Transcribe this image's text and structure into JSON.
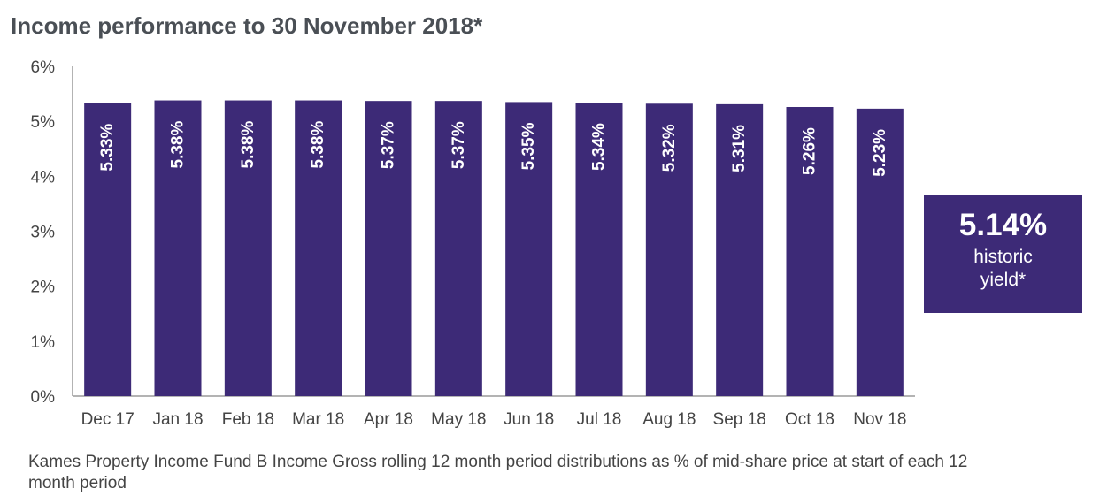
{
  "colors": {
    "bar": "#3d2a77",
    "axis": "#9a9a9a",
    "title": "#4a4f55",
    "text": "#444444",
    "bar_label": "#ffffff"
  },
  "callout": {
    "value": "5.14%",
    "label": "historic yield*"
  },
  "footnote": "Kames Property Income Fund B Income Gross rolling 12 month period distributions as % of mid-share price at start of each 12 month period",
  "chart_data": {
    "type": "bar",
    "title": "Income performance to 30 November 2018*",
    "xlabel": "",
    "ylabel": "",
    "categories": [
      "Dec 17",
      "Jan 18",
      "Feb 18",
      "Mar 18",
      "Apr 18",
      "May 18",
      "Jun 18",
      "Jul 18",
      "Aug 18",
      "Sep 18",
      "Oct 18",
      "Nov 18"
    ],
    "values": [
      5.33,
      5.38,
      5.38,
      5.38,
      5.37,
      5.37,
      5.35,
      5.34,
      5.32,
      5.31,
      5.26,
      5.23
    ],
    "data_labels": [
      "5.33%",
      "5.38%",
      "5.38%",
      "5.38%",
      "5.37%",
      "5.37%",
      "5.35%",
      "5.34%",
      "5.32%",
      "5.31%",
      "5.26%",
      "5.23%"
    ],
    "ylim": [
      0,
      6
    ],
    "yticks": [
      0,
      1,
      2,
      3,
      4,
      5,
      6
    ],
    "ytick_labels": [
      "0%",
      "1%",
      "2%",
      "3%",
      "4%",
      "5%",
      "6%"
    ],
    "grid": false,
    "legend": "none"
  }
}
